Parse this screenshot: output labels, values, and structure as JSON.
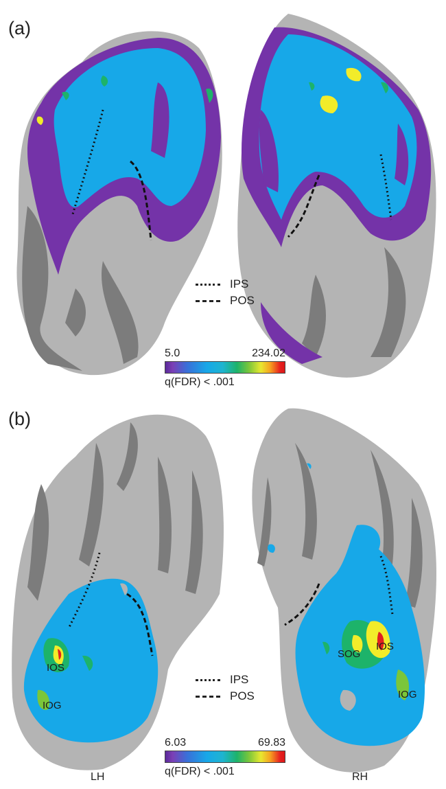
{
  "panel_a": {
    "label": "(a)",
    "legend": {
      "dotted": "IPS",
      "dashed": "POS"
    },
    "colorbar": {
      "min": "5.0",
      "max": "234.02",
      "caption": "q(FDR) < .001"
    }
  },
  "panel_b": {
    "label": "(b)",
    "legend": {
      "dotted": "IPS",
      "dashed": "POS"
    },
    "colorbar": {
      "min": "6.03",
      "max": "69.83",
      "caption": "q(FDR) < .001"
    },
    "hemispheres": {
      "left": "LH",
      "right": "RH"
    },
    "roi_labels": {
      "lh_ios": "IOS",
      "lh_iog": "IOG",
      "rh_sog": "SOG",
      "rh_ios": "IOS",
      "rh_iog": "IOG"
    }
  },
  "colors": {
    "gray_light": "#b4b4b4",
    "gray_dark": "#7c7c7c",
    "purple": "#7433a8",
    "blue": "#17a8e8",
    "green": "#1db36a",
    "yellow": "#f2ec2a",
    "red": "#e02020"
  }
}
